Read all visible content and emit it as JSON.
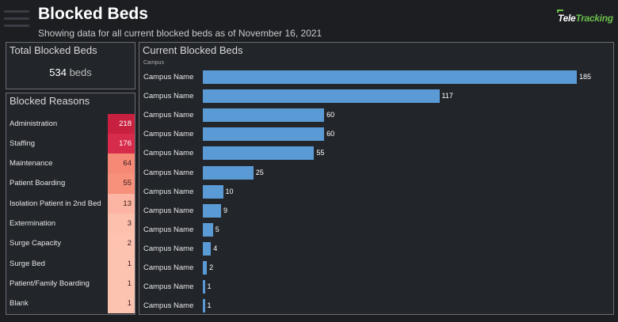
{
  "header": {
    "title": "Blocked Beds",
    "subtitle": "Showing data for all current blocked beds as of November 16, 2021",
    "logo_part1": "Tele",
    "logo_part2": "Tracking"
  },
  "total": {
    "title": "Total Blocked Beds",
    "value": "534",
    "unit": "beds"
  },
  "reasons": {
    "title": "Blocked Reasons",
    "items": [
      {
        "label": "Administration",
        "value": 218,
        "color": "#c8213f"
      },
      {
        "label": "Staffing",
        "value": 176,
        "color": "#d62b4a"
      },
      {
        "label": "Maintenance",
        "value": 64,
        "color": "#f58975"
      },
      {
        "label": "Patient Boarding",
        "value": 55,
        "color": "#f7917c"
      },
      {
        "label": "Isolation Patient in 2nd Bed",
        "value": 13,
        "color": "#fcb5a2"
      },
      {
        "label": "Extermination",
        "value": 3,
        "color": "#fdc0ad"
      },
      {
        "label": "Surge Capacity",
        "value": 2,
        "color": "#fdc2b0"
      },
      {
        "label": "Surge Bed",
        "value": 1,
        "color": "#fdc3b1"
      },
      {
        "label": "Patient/Family Boarding",
        "value": 1,
        "color": "#fdc3b1"
      },
      {
        "label": "Blank",
        "value": 1,
        "color": "#fdc3b1"
      }
    ]
  },
  "chart_data": {
    "type": "bar",
    "orientation": "horizontal",
    "title": "Current Blocked Beds",
    "ylabel": "Campus",
    "categories": [
      "Campus Name",
      "Campus Name",
      "Campus Name",
      "Campus Name",
      "Campus Name",
      "Campus Name",
      "Campus Name",
      "Campus Name",
      "Campus Name",
      "Campus Name",
      "Campus Name",
      "Campus Name",
      "Campus Name"
    ],
    "values": [
      185,
      117,
      60,
      60,
      55,
      25,
      10,
      9,
      5,
      4,
      2,
      1,
      1
    ],
    "xlim": [
      0,
      185
    ],
    "bar_color": "#5b9bd5",
    "grid": false
  }
}
